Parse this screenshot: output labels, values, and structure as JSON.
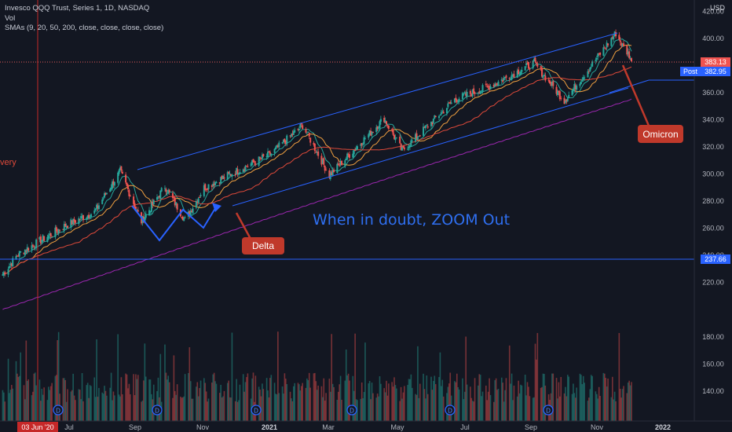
{
  "header": {
    "title": "Invesco QQQ Trust, Series 1, 1D, NASDAQ",
    "volume_label": "Vol",
    "indicator_label": "SMAs (9, 20, 50, 200, close, close, close, close)",
    "currency": "USD"
  },
  "colors": {
    "background": "#131722",
    "up": "#26a69a",
    "down": "#ef5350",
    "channel": "#2962ff",
    "sma_fast": "#26a69a",
    "sma_mid": "#f0a040",
    "sma_50": "#e04a3a",
    "sma_200": "#9c27b0",
    "level_line": "#2962ff",
    "vertical_marker": "#c62828",
    "callout": "#c0392b",
    "headline": "#2f6ff0"
  },
  "annotations": {
    "headline": "When in doubt, ZOOM Out",
    "delta_label": "Delta",
    "omicron_label": "Omicron",
    "left_partial_label": "very",
    "date_marker": "03 Jun '20"
  },
  "price_badges": {
    "last": "383.13",
    "post_label": "Post",
    "post": "382.95",
    "level": "237.66"
  },
  "chart_data": {
    "type": "candlestick",
    "title": "Invesco QQQ Trust, Series 1, 1D, NASDAQ",
    "x_ticks": [
      "Jul",
      "Sep",
      "Nov",
      "2021",
      "Mar",
      "May",
      "Jul",
      "Sep",
      "Nov",
      "2022"
    ],
    "y_ticks_price": [
      220,
      240,
      260,
      280,
      300,
      320,
      340,
      360,
      380,
      400,
      420
    ],
    "y_ticks_volume": [
      140,
      160,
      180
    ],
    "price_key_points": [
      {
        "date": "2020-05-20",
        "close": 226
      },
      {
        "date": "2020-06-03",
        "close": 241
      },
      {
        "date": "2020-07-15",
        "close": 262
      },
      {
        "date": "2020-08-10",
        "close": 272
      },
      {
        "date": "2020-09-02",
        "close": 302
      },
      {
        "date": "2020-09-21",
        "close": 265
      },
      {
        "date": "2020-10-12",
        "close": 291
      },
      {
        "date": "2020-10-30",
        "close": 266
      },
      {
        "date": "2020-11-16",
        "close": 290
      },
      {
        "date": "2020-12-10",
        "close": 300
      },
      {
        "date": "2021-01-15",
        "close": 315
      },
      {
        "date": "2021-02-12",
        "close": 336
      },
      {
        "date": "2021-03-08",
        "close": 299
      },
      {
        "date": "2021-04-26",
        "close": 341
      },
      {
        "date": "2021-05-12",
        "close": 317
      },
      {
        "date": "2021-06-28",
        "close": 355
      },
      {
        "date": "2021-07-30",
        "close": 365
      },
      {
        "date": "2021-09-07",
        "close": 382
      },
      {
        "date": "2021-10-04",
        "close": 354
      },
      {
        "date": "2021-11-19",
        "close": 404
      },
      {
        "date": "2021-11-26",
        "close": 393
      },
      {
        "date": "2021-12-01",
        "close": 388
      },
      {
        "date": "2021-12-03",
        "close": 383.13
      }
    ],
    "series": [
      {
        "name": "SMA 9",
        "type": "line"
      },
      {
        "name": "SMA 20",
        "type": "line"
      },
      {
        "name": "SMA 50",
        "type": "line"
      },
      {
        "name": "SMA 200",
        "type": "line"
      }
    ],
    "annotations": [
      {
        "text": "Delta",
        "type": "callout"
      },
      {
        "text": "Omicron",
        "type": "callout"
      },
      {
        "text": "When in doubt, ZOOM Out",
        "type": "text"
      }
    ],
    "horizontal_levels": [
      237.66,
      383.13
    ],
    "legend_position": "top-left",
    "grid": false
  }
}
